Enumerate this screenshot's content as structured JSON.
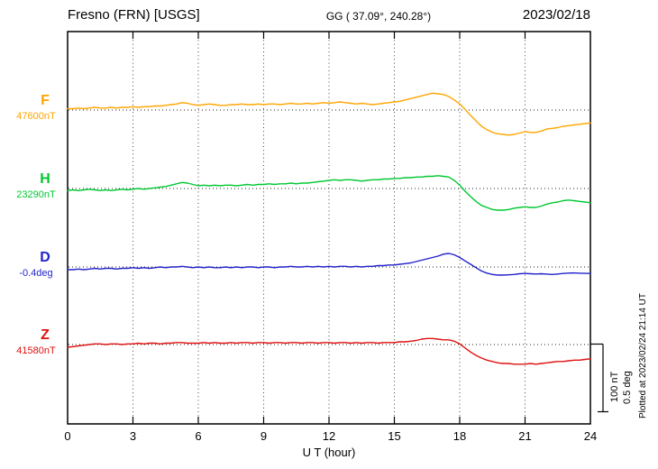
{
  "header": {
    "station": "Fresno (FRN)  [USGS]",
    "coords": "GG ( 37.09°, 240.28°)",
    "date": "2023/02/18"
  },
  "x_axis": {
    "tick_labels": [
      "0",
      "3",
      "6",
      "9",
      "12",
      "15",
      "18",
      "21",
      "24"
    ],
    "label": "U T (hour)"
  },
  "right_margin": {
    "scale_nt": "100 nT",
    "scale_deg": "0.5 deg",
    "plotted_note": "Plotted at 2023/02/24 21:14 UT"
  },
  "chart_data": {
    "type": "line",
    "title": "Fresno (FRN) [USGS] magnetogram 2023/02/18",
    "xlabel": "U T (hour)",
    "x_unit": "hour UT",
    "x_start": 0,
    "x_step": 0.25,
    "x_end": 24,
    "x_ticks": [
      0,
      3,
      6,
      9,
      12,
      15,
      18,
      21,
      24
    ],
    "grid": "dotted vertical every 3 h, dotted horizontal baseline per trace",
    "scale": {
      "nT_per_div": 100,
      "deg_per_div": 0.5
    },
    "series": [
      {
        "name": "F",
        "baseline_value": "47600nT",
        "unit": "nT offset from 47600 nT",
        "color": "#ffa500",
        "offsets": [
          2,
          2,
          3,
          2,
          3,
          4,
          3,
          3,
          4,
          3,
          4,
          4,
          5,
          4,
          5,
          5,
          6,
          6,
          7,
          8,
          9,
          11,
          10,
          8,
          7,
          8,
          9,
          8,
          7,
          7,
          8,
          8,
          9,
          8,
          8,
          9,
          8,
          9,
          9,
          8,
          9,
          10,
          9,
          9,
          10,
          9,
          10,
          11,
          10,
          11,
          12,
          11,
          10,
          9,
          10,
          9,
          8,
          9,
          10,
          11,
          12,
          13,
          15,
          17,
          19,
          21,
          23,
          25,
          24,
          23,
          20,
          15,
          9,
          1,
          -8,
          -16,
          -24,
          -29,
          -33,
          -35,
          -36,
          -37,
          -36,
          -34,
          -32,
          -33,
          -33,
          -31,
          -28,
          -27,
          -26,
          -24,
          -23,
          -22,
          -21,
          -20,
          -19
        ]
      },
      {
        "name": "H",
        "baseline_value": "23290nT",
        "unit": "nT offset from 23290 nT",
        "color": "#00c832",
        "offsets": [
          -3,
          -2,
          -3,
          -2,
          -1,
          -2,
          -3,
          -2,
          -3,
          -2,
          -1,
          -2,
          -1,
          0,
          -1,
          0,
          1,
          2,
          3,
          5,
          7,
          9,
          8,
          6,
          4,
          5,
          4,
          5,
          4,
          5,
          5,
          4,
          5,
          6,
          5,
          6,
          6,
          7,
          6,
          7,
          7,
          8,
          7,
          8,
          8,
          9,
          10,
          11,
          12,
          13,
          12,
          13,
          13,
          12,
          11,
          12,
          13,
          13,
          14,
          14,
          15,
          15,
          16,
          16,
          17,
          17,
          18,
          18,
          19,
          18,
          17,
          12,
          5,
          -4,
          -12,
          -19,
          -25,
          -28,
          -31,
          -32,
          -32,
          -31,
          -29,
          -28,
          -27,
          -28,
          -28,
          -26,
          -23,
          -21,
          -20,
          -18,
          -17,
          -18,
          -19,
          -20,
          -21
        ]
      },
      {
        "name": "D",
        "baseline_value": "-0.4deg",
        "unit": "deg offset from -0.4 deg",
        "color": "#2222cc",
        "offsets": [
          -0.02,
          -0.02,
          -0.015,
          -0.02,
          -0.015,
          -0.01,
          -0.015,
          -0.01,
          -0.01,
          -0.015,
          -0.01,
          -0.01,
          -0.005,
          -0.01,
          -0.005,
          -0.01,
          -0.005,
          0,
          -0.005,
          0,
          0,
          0.005,
          0,
          -0.005,
          0,
          -0.005,
          0,
          -0.005,
          -0.005,
          0,
          -0.005,
          0,
          -0.005,
          0,
          0,
          -0.005,
          0,
          0,
          -0.005,
          0,
          0,
          0.005,
          0,
          0,
          0.005,
          0,
          0.005,
          0,
          0.005,
          0,
          0.005,
          0.005,
          0,
          0.005,
          0,
          0.005,
          0.005,
          0.01,
          0.01,
          0.015,
          0.015,
          0.02,
          0.025,
          0.03,
          0.04,
          0.05,
          0.06,
          0.07,
          0.08,
          0.095,
          0.1,
          0.09,
          0.07,
          0.045,
          0.02,
          -0.005,
          -0.03,
          -0.045,
          -0.055,
          -0.06,
          -0.06,
          -0.058,
          -0.055,
          -0.05,
          -0.048,
          -0.05,
          -0.052,
          -0.05,
          -0.053,
          -0.055,
          -0.052,
          -0.048,
          -0.045,
          -0.044,
          -0.046,
          -0.047,
          -0.048
        ]
      },
      {
        "name": "Z",
        "baseline_value": "41580nT",
        "unit": "nT offset from 41580 nT",
        "color": "#e01010",
        "offsets": [
          -4,
          -3,
          -2,
          -1,
          0,
          1,
          1,
          0,
          1,
          1,
          0,
          1,
          1,
          2,
          1,
          2,
          2,
          1,
          2,
          2,
          3,
          3,
          2,
          2,
          2,
          3,
          2,
          3,
          2,
          2,
          3,
          2,
          3,
          3,
          2,
          3,
          3,
          2,
          3,
          3,
          2,
          3,
          3,
          2,
          3,
          3,
          2,
          3,
          3,
          2,
          3,
          3,
          2,
          3,
          2,
          3,
          3,
          2,
          3,
          3,
          3,
          4,
          4,
          5,
          6,
          8,
          9,
          9,
          8,
          7,
          7,
          5,
          1,
          -5,
          -11,
          -16,
          -20,
          -23,
          -25,
          -27,
          -28,
          -28,
          -29,
          -29,
          -29,
          -28,
          -29,
          -28,
          -27,
          -26,
          -25,
          -25,
          -24,
          -23,
          -23,
          -22,
          -21
        ]
      }
    ]
  }
}
